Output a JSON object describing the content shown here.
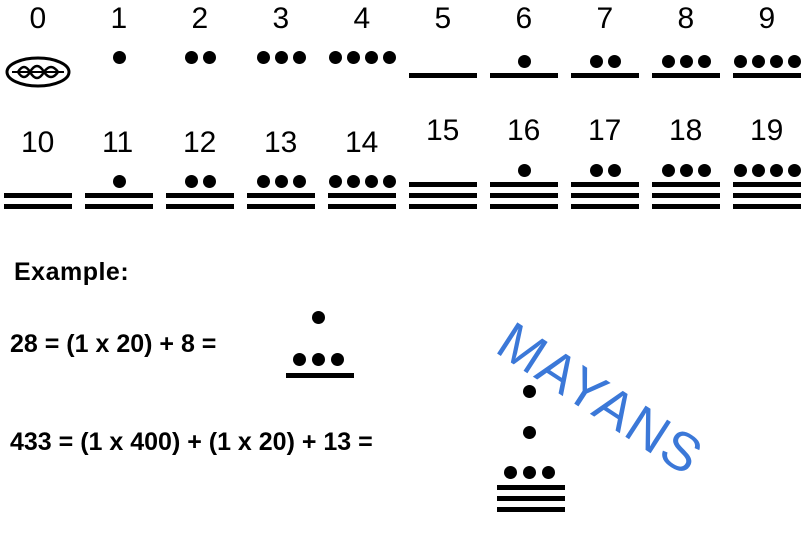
{
  "numerals": [
    {
      "label": "0",
      "dots": 0,
      "bars": 0,
      "shell": true
    },
    {
      "label": "1",
      "dots": 1,
      "bars": 0
    },
    {
      "label": "2",
      "dots": 2,
      "bars": 0
    },
    {
      "label": "3",
      "dots": 3,
      "bars": 0
    },
    {
      "label": "4",
      "dots": 4,
      "bars": 0
    },
    {
      "label": "5",
      "dots": 0,
      "bars": 1
    },
    {
      "label": "6",
      "dots": 1,
      "bars": 1
    },
    {
      "label": "7",
      "dots": 2,
      "bars": 1
    },
    {
      "label": "8",
      "dots": 3,
      "bars": 1
    },
    {
      "label": "9",
      "dots": 4,
      "bars": 1
    },
    {
      "label": "10",
      "dots": 0,
      "bars": 2
    },
    {
      "label": "11",
      "dots": 1,
      "bars": 2
    },
    {
      "label": "12",
      "dots": 2,
      "bars": 2
    },
    {
      "label": "13",
      "dots": 3,
      "bars": 2
    },
    {
      "label": "14",
      "dots": 4,
      "bars": 2
    },
    {
      "label": "15",
      "dots": 0,
      "bars": 3
    },
    {
      "label": "16",
      "dots": 1,
      "bars": 3
    },
    {
      "label": "17",
      "dots": 2,
      "bars": 3
    },
    {
      "label": "18",
      "dots": 3,
      "bars": 3
    },
    {
      "label": "19",
      "dots": 4,
      "bars": 3
    }
  ],
  "example": {
    "title": "Example:",
    "eq1": "28 = (1 x 20) + 8 =",
    "eq2": "433 = (1 x 400) + (1 x 20) + 13 ="
  },
  "watermark": "MAYANS",
  "colors": {
    "ink": "#000000",
    "watermark": "#3b78d8"
  }
}
